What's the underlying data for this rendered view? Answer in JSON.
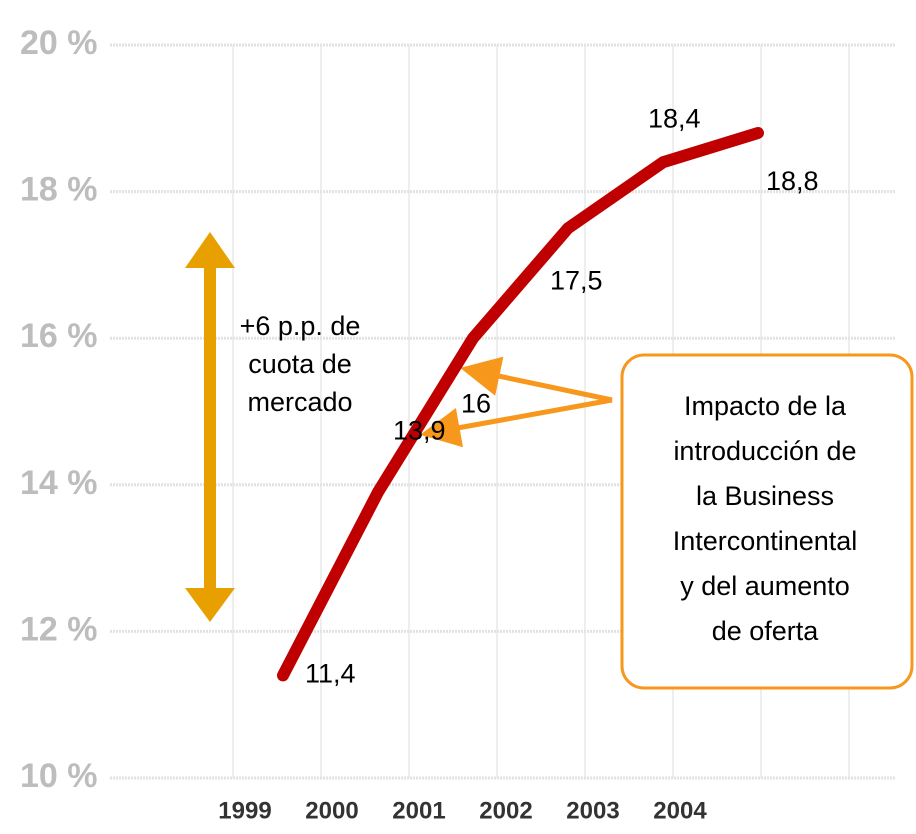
{
  "chart_data": {
    "type": "line",
    "categories": [
      "1999",
      "2000",
      "2001",
      "2002",
      "2003",
      "2004"
    ],
    "series": [
      {
        "color": "#c00000",
        "values": [
          11.4,
          13.9,
          16,
          17.5,
          18.4,
          18.8
        ],
        "value_labels": [
          "11,4",
          "13,9",
          "16",
          "17,5",
          "18,4",
          "18,8"
        ]
      }
    ],
    "ylim": [
      10,
      20
    ],
    "yticks": [
      {
        "value": 10,
        "label": "10 %"
      },
      {
        "value": 12,
        "label": "12 %"
      },
      {
        "value": 14,
        "label": "14 %"
      },
      {
        "value": 16,
        "label": "16 %"
      },
      {
        "value": 18,
        "label": "18 %"
      },
      {
        "value": 20,
        "label": "20 %"
      }
    ],
    "grid": true,
    "annotations": [
      {
        "lines": [
          "+6 p.p. de",
          "cuota de",
          "mercado"
        ]
      },
      {
        "lines": [
          "Impacto de la",
          "introducción de",
          "la Business",
          "Intercontinental",
          "y del aumento",
          "de oferta"
        ]
      }
    ]
  }
}
